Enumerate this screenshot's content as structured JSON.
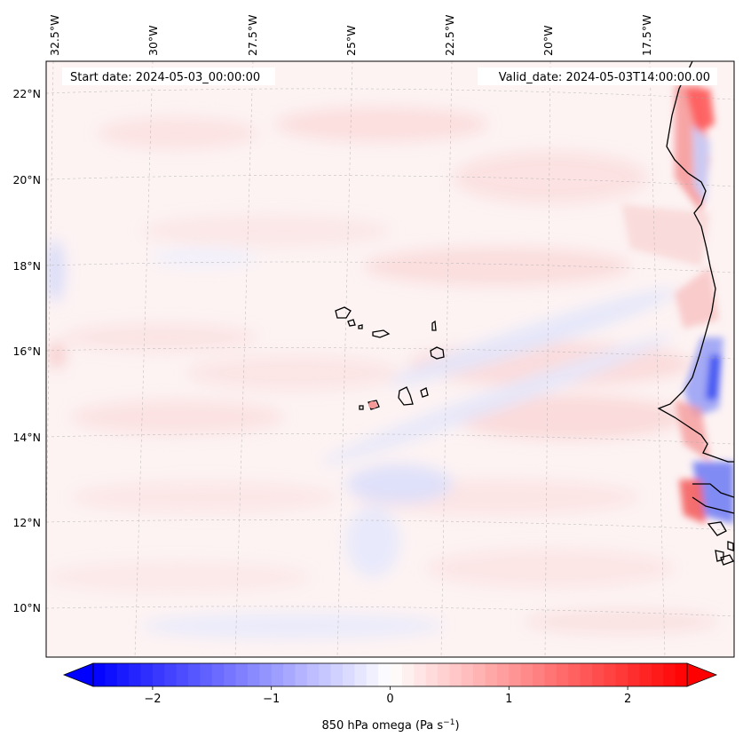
{
  "map": {
    "start_date_label": "Start date: 2024-05-03_00:00:00",
    "valid_date_label": "Valid_date: 2024-05-03T14:00:00.00",
    "lon_labels": [
      "32.5°W",
      "30°W",
      "27.5°W",
      "25°W",
      "22.5°W",
      "20°W",
      "17.5°W"
    ],
    "lat_labels": [
      "22°N",
      "20°N",
      "18°N",
      "16°N",
      "14°N",
      "12°N",
      "10°N"
    ]
  },
  "colorbar": {
    "label": "850 hPa omega (Pa s",
    "label_exp": "−1",
    "label_tail": ")",
    "ticks": [
      "−2",
      "−1",
      "0",
      "1",
      "2"
    ],
    "tick_values": [
      -2,
      -1,
      0,
      1,
      2
    ],
    "vmin": -2.5,
    "vmax": 2.5,
    "low_color": "#0000ff",
    "mid_color": "#ffffff",
    "high_color": "#ff0000"
  }
}
